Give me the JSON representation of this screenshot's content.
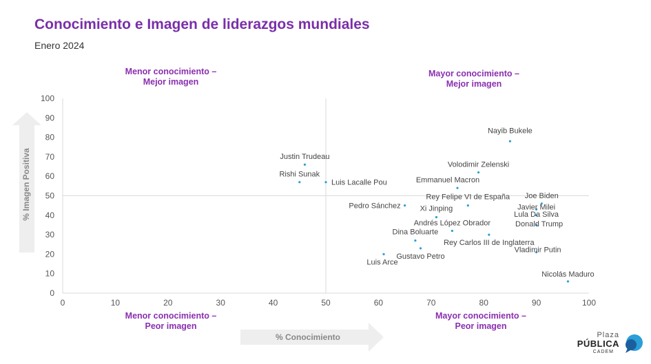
{
  "header": {
    "title": "Conocimiento e Imagen de liderazgos mundiales",
    "subtitle": "Enero 2024"
  },
  "quadrants": {
    "top_left": [
      "Menor conocimiento –",
      "Mejor imagen"
    ],
    "top_right": [
      "Mayor conocimiento –",
      "Mejor imagen"
    ],
    "bottom_left": [
      "Menor conocimiento –",
      "Peor imagen"
    ],
    "bottom_right": [
      "Mayor conocimiento –",
      "Peor imagen"
    ]
  },
  "logo": {
    "line1": "Plaza",
    "line2": "PÚBLICA",
    "line3": "CADEM"
  },
  "chart_data": {
    "type": "scatter",
    "xlabel": "% Conocimiento",
    "ylabel": "% Imagen Positiva",
    "xlim": [
      0,
      100
    ],
    "ylim": [
      0,
      100
    ],
    "x_ticks": [
      0,
      10,
      20,
      30,
      40,
      50,
      60,
      70,
      80,
      90,
      100
    ],
    "y_ticks": [
      0,
      10,
      20,
      30,
      40,
      50,
      60,
      70,
      80,
      90,
      100
    ],
    "reference_lines": {
      "x": 50,
      "y": 50
    },
    "point_color": "#2a9fd8",
    "points": [
      {
        "label": "Nayib Bukele",
        "x": 85,
        "y": 78
      },
      {
        "label": "Justin Trudeau",
        "x": 46,
        "y": 66
      },
      {
        "label": "Rishi Sunak",
        "x": 45,
        "y": 57
      },
      {
        "label": "Luis Lacalle Pou",
        "x": 50,
        "y": 57
      },
      {
        "label": "Volodimir Zelenski",
        "x": 79,
        "y": 62
      },
      {
        "label": "Emmanuel Macron",
        "x": 75,
        "y": 54
      },
      {
        "label": "Rey Felipe VI de España",
        "x": 77,
        "y": 45
      },
      {
        "label": "Joe Biden",
        "x": 91,
        "y": 46
      },
      {
        "label": "Pedro Sánchez",
        "x": 65,
        "y": 45
      },
      {
        "label": "Xi Jinping",
        "x": 71,
        "y": 39
      },
      {
        "label": "Javier Milei",
        "x": 90,
        "y": 43
      },
      {
        "label": "Lula Da Silva",
        "x": 90,
        "y": 40
      },
      {
        "label": "Andrés López Obrador",
        "x": 74,
        "y": 32
      },
      {
        "label": "Donald Trump",
        "x": 90,
        "y": 35
      },
      {
        "label": "Dina Boluarte",
        "x": 67,
        "y": 27
      },
      {
        "label": "Rey Carlos III de Inglaterra",
        "x": 81,
        "y": 30
      },
      {
        "label": "Gustavo Petro",
        "x": 68,
        "y": 23
      },
      {
        "label": "Vladimir Putin",
        "x": 90,
        "y": 21
      },
      {
        "label": "Luis Arce",
        "x": 61,
        "y": 20
      },
      {
        "label": "Nicolás Maduro",
        "x": 96,
        "y": 6
      }
    ]
  }
}
